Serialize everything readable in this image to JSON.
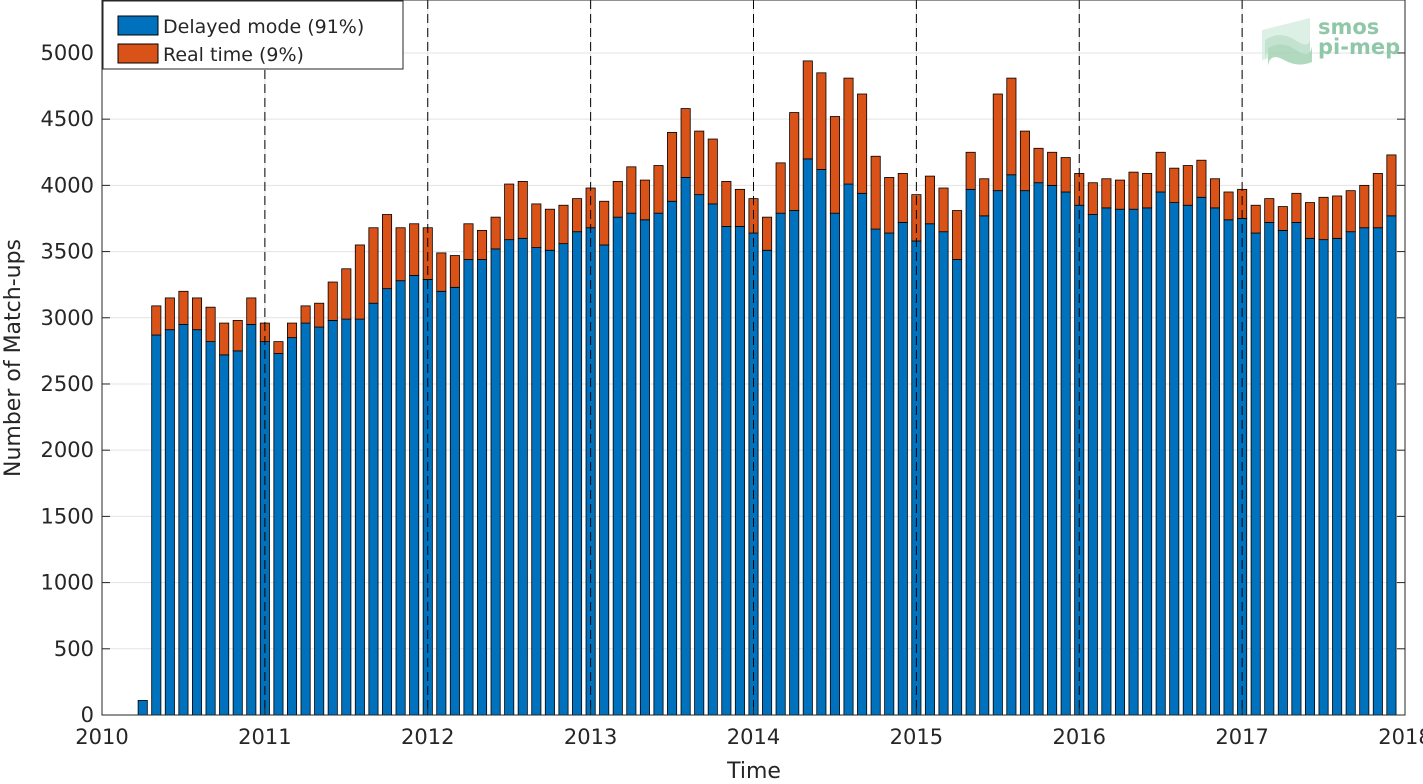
{
  "chart_data": {
    "type": "bar",
    "stacked": true,
    "x_start": "2010-04",
    "x_step": "1 month",
    "xlabel": "Time",
    "ylabel": "Number of Match-ups",
    "xlim": [
      2010,
      2018
    ],
    "ylim": [
      0,
      5400
    ],
    "xticks": [
      "2010",
      "2011",
      "2012",
      "2013",
      "2014",
      "2015",
      "2016",
      "2017",
      "2018"
    ],
    "yticks": [
      0,
      500,
      1000,
      1500,
      2000,
      2500,
      3000,
      3500,
      4000,
      4500,
      5000
    ],
    "grid": true,
    "vertical_dashed_lines_at_years": true,
    "legend_position": "top-left",
    "series": [
      {
        "name": "Delayed mode (91%)",
        "color": "#0072BD",
        "values": [
          110,
          2870,
          2910,
          2950,
          2910,
          2820,
          2720,
          2750,
          2950,
          2820,
          2730,
          2850,
          2960,
          2930,
          2980,
          2990,
          2990,
          3110,
          3220,
          3280,
          3320,
          3290,
          3200,
          3230,
          3440,
          3440,
          3520,
          3590,
          3600,
          3530,
          3510,
          3560,
          3650,
          3680,
          3550,
          3760,
          3790,
          3740,
          3790,
          3880,
          4060,
          3930,
          3860,
          3690,
          3690,
          3640,
          3510,
          3790,
          3810,
          4200,
          4120,
          3790,
          4010,
          3940,
          3670,
          3640,
          3720,
          3580,
          3710,
          3650,
          3440,
          3970,
          3770,
          3960,
          4080,
          3960,
          4020,
          4000,
          3950,
          3850,
          3780,
          3830,
          3820,
          3820,
          3830,
          3950,
          3870,
          3850,
          3910,
          3830,
          3740,
          3750,
          3640,
          3720,
          3660,
          3720,
          3600,
          3590,
          3600,
          3650,
          3680,
          3680,
          3770
        ]
      },
      {
        "name": "Real time (9%)",
        "color": "#D95319",
        "values": [
          0,
          220,
          240,
          250,
          240,
          260,
          240,
          230,
          200,
          140,
          90,
          110,
          130,
          180,
          290,
          380,
          560,
          570,
          560,
          400,
          390,
          390,
          290,
          240,
          270,
          220,
          240,
          420,
          430,
          330,
          310,
          290,
          250,
          300,
          330,
          270,
          350,
          300,
          360,
          520,
          520,
          480,
          490,
          340,
          280,
          260,
          250,
          380,
          740,
          740,
          730,
          730,
          800,
          750,
          550,
          420,
          370,
          350,
          360,
          330,
          370,
          280,
          280,
          730,
          730,
          450,
          260,
          250,
          260,
          240,
          240,
          220,
          220,
          280,
          260,
          300,
          260,
          300,
          280,
          220,
          210,
          220,
          210,
          180,
          180,
          220,
          270,
          320,
          320,
          310,
          320,
          410,
          460
        ]
      }
    ]
  },
  "logo": {
    "text_line1": "smos",
    "text_line2": "pi-mep",
    "color": "#8fc7a8"
  }
}
